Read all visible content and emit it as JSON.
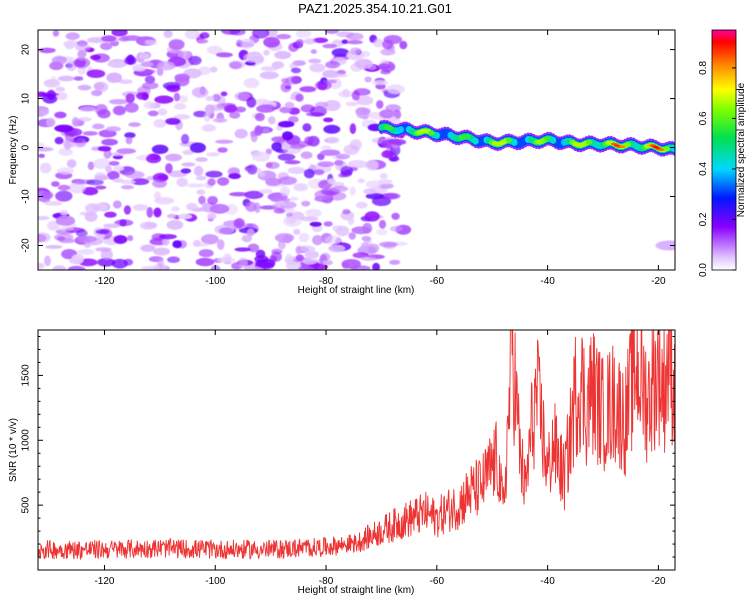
{
  "figure_title": "PAZ1.2025.354.10.21.G01",
  "chart_data": [
    {
      "type": "heatmap",
      "title": "PAZ1.2025.354.10.21.G01",
      "xlabel": "Height of straight line (km)",
      "ylabel": "Frequency (Hz)",
      "xlim": [
        -132,
        -17
      ],
      "ylim": [
        -25,
        24
      ],
      "xticks": [
        -120,
        -100,
        -80,
        -60,
        -40,
        -20
      ],
      "yticks": [
        -20,
        -10,
        0,
        10,
        20
      ],
      "colorbar": {
        "label": "Normalized spectral amplitude",
        "range": [
          0,
          0.95
        ],
        "ticks": [
          0.0,
          0.2,
          0.4,
          0.6,
          0.8
        ]
      },
      "features": {
        "noise_region_x": [
          -132,
          -70
        ],
        "signal_ridge": {
          "x": [
            -70,
            -65,
            -60,
            -55,
            -50,
            -45,
            -40,
            -35,
            -30,
            -25,
            -20,
            -17
          ],
          "frequency": [
            4.0,
            3.5,
            2.8,
            2.0,
            1.0,
            1.2,
            1.5,
            0.8,
            0.7,
            0.4,
            0.0,
            -0.5
          ],
          "peak_amplitude": [
            0.55,
            0.8,
            0.7,
            0.6,
            0.85,
            0.65,
            0.7,
            0.75,
            0.95,
            0.9,
            0.95,
            0.85
          ]
        },
        "faint_blob": {
          "x": -18,
          "frequency": -20
        }
      }
    },
    {
      "type": "line",
      "xlabel": "Height of straight line (km)",
      "ylabel": "SNR (10 * v/v)",
      "xlim": [
        -132,
        -17
      ],
      "ylim": [
        0,
        1850
      ],
      "xticks": [
        -120,
        -100,
        -80,
        -60,
        -40,
        -20
      ],
      "yticks": [
        500,
        1000,
        1500
      ],
      "color": "#ee3333",
      "series": [
        {
          "name": "SNR",
          "x": [
            -132,
            -125,
            -120,
            -110,
            -100,
            -90,
            -80,
            -75,
            -70,
            -66,
            -62,
            -60,
            -58,
            -56,
            -54,
            -52,
            -50,
            -49,
            -48,
            -47,
            -46.5,
            -46,
            -45,
            -44,
            -43,
            -42,
            -41,
            -40,
            -39,
            -38,
            -37,
            -36,
            -35,
            -34,
            -33,
            -32,
            -30,
            -28,
            -26,
            -24,
            -22,
            -20,
            -19,
            -18,
            -17
          ],
          "values": [
            150,
            150,
            150,
            160,
            150,
            150,
            170,
            200,
            300,
            380,
            440,
            400,
            460,
            500,
            600,
            640,
            800,
            850,
            450,
            1200,
            1850,
            1500,
            900,
            600,
            1050,
            1350,
            1100,
            750,
            980,
            850,
            700,
            1000,
            1350,
            1450,
            1250,
            1400,
            1200,
            1300,
            1150,
            1600,
            1300,
            1550,
            1400,
            1680,
            1350
          ]
        }
      ]
    }
  ]
}
